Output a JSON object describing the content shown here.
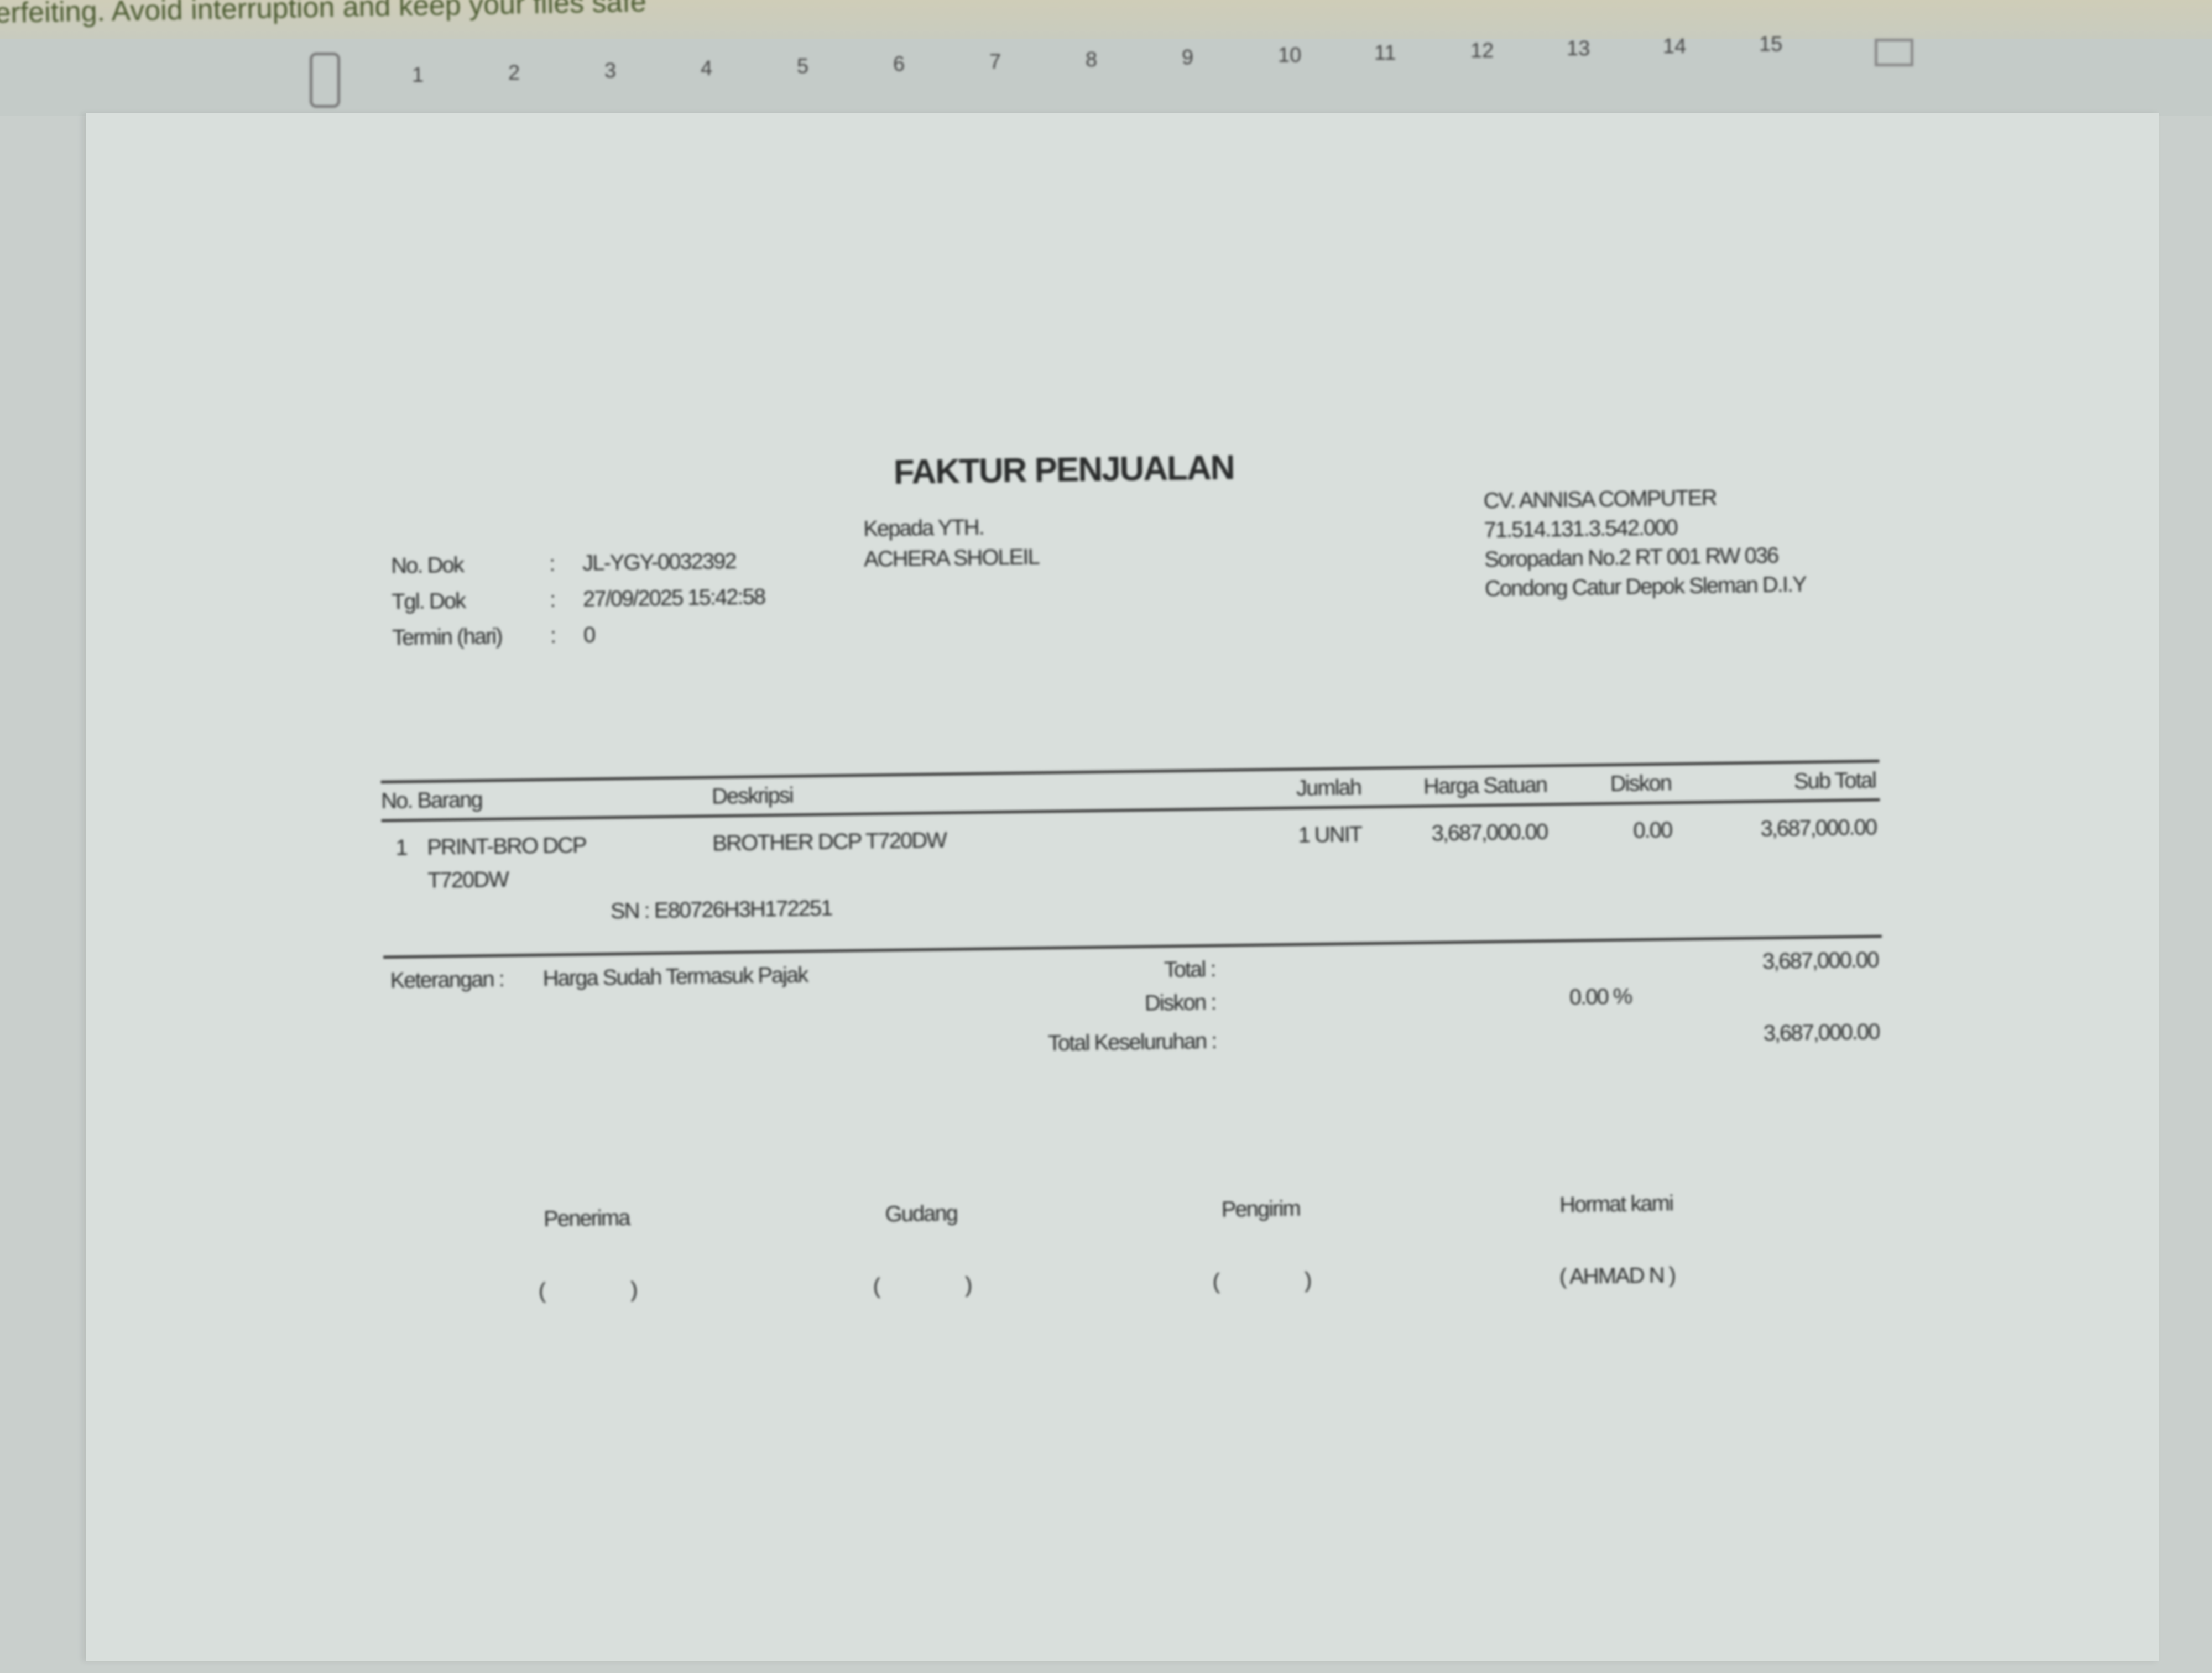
{
  "banner_text": "erfeiting. Avoid interruption and keep your files safe",
  "ruler": {
    "ticks": [
      "1",
      "2",
      "3",
      "4",
      "5",
      "6",
      "7",
      "8",
      "9",
      "10",
      "11",
      "12",
      "13",
      "14",
      "15"
    ]
  },
  "invoice": {
    "title": "FAKTUR PENJUALAN",
    "meta": [
      {
        "label": "No. Dok",
        "value": "JL-YGY-0032392"
      },
      {
        "label": "Tgl. Dok",
        "value": "27/09/2025 15:42:58"
      },
      {
        "label": "Termin (hari)",
        "value": "0"
      }
    ],
    "colon": ":",
    "recipient": {
      "label": "Kepada YTH.",
      "name": "ACHERA SHOLEIL"
    },
    "company": {
      "name": "CV. ANNISA COMPUTER",
      "npwp": "71.514.131.3.542.000",
      "address1": "Soropadan No.2 RT 001 RW 036",
      "address2": "Condong Catur Depok Sleman D.I.Y"
    },
    "table": {
      "headers": {
        "no_barang": "No. Barang",
        "deskripsi": "Deskripsi",
        "jumlah": "Jumlah",
        "harga": "Harga Satuan",
        "diskon": "Diskon",
        "subtotal": "Sub Total"
      },
      "rows": [
        {
          "no": "1",
          "kode": "PRINT-BRO DCP",
          "kode2": "T720DW",
          "deskripsi": "BROTHER DCP T720DW",
          "jumlah": "1 UNIT",
          "harga": "3,687,000.00",
          "diskon": "0.00",
          "subtotal": "3,687,000.00",
          "sn": "SN : E80726H3H172251"
        }
      ]
    },
    "keterangan": {
      "label": "Keterangan :",
      "value": "Harga Sudah Termasuk Pajak"
    },
    "totals": {
      "total_label": "Total :",
      "total_value": "3,687,000.00",
      "diskon_label": "Diskon :",
      "diskon_value": "0.00  %",
      "grand_label": "Total Keseluruhan :",
      "grand_value": "3,687,000.00"
    },
    "signatures": [
      {
        "label": "Penerima",
        "name": "(                 )"
      },
      {
        "label": "Gudang",
        "name": "(                 )"
      },
      {
        "label": "Pengirim",
        "name": "(                 )"
      },
      {
        "label": "Hormat kami",
        "name": "( AHMAD N )"
      }
    ]
  }
}
